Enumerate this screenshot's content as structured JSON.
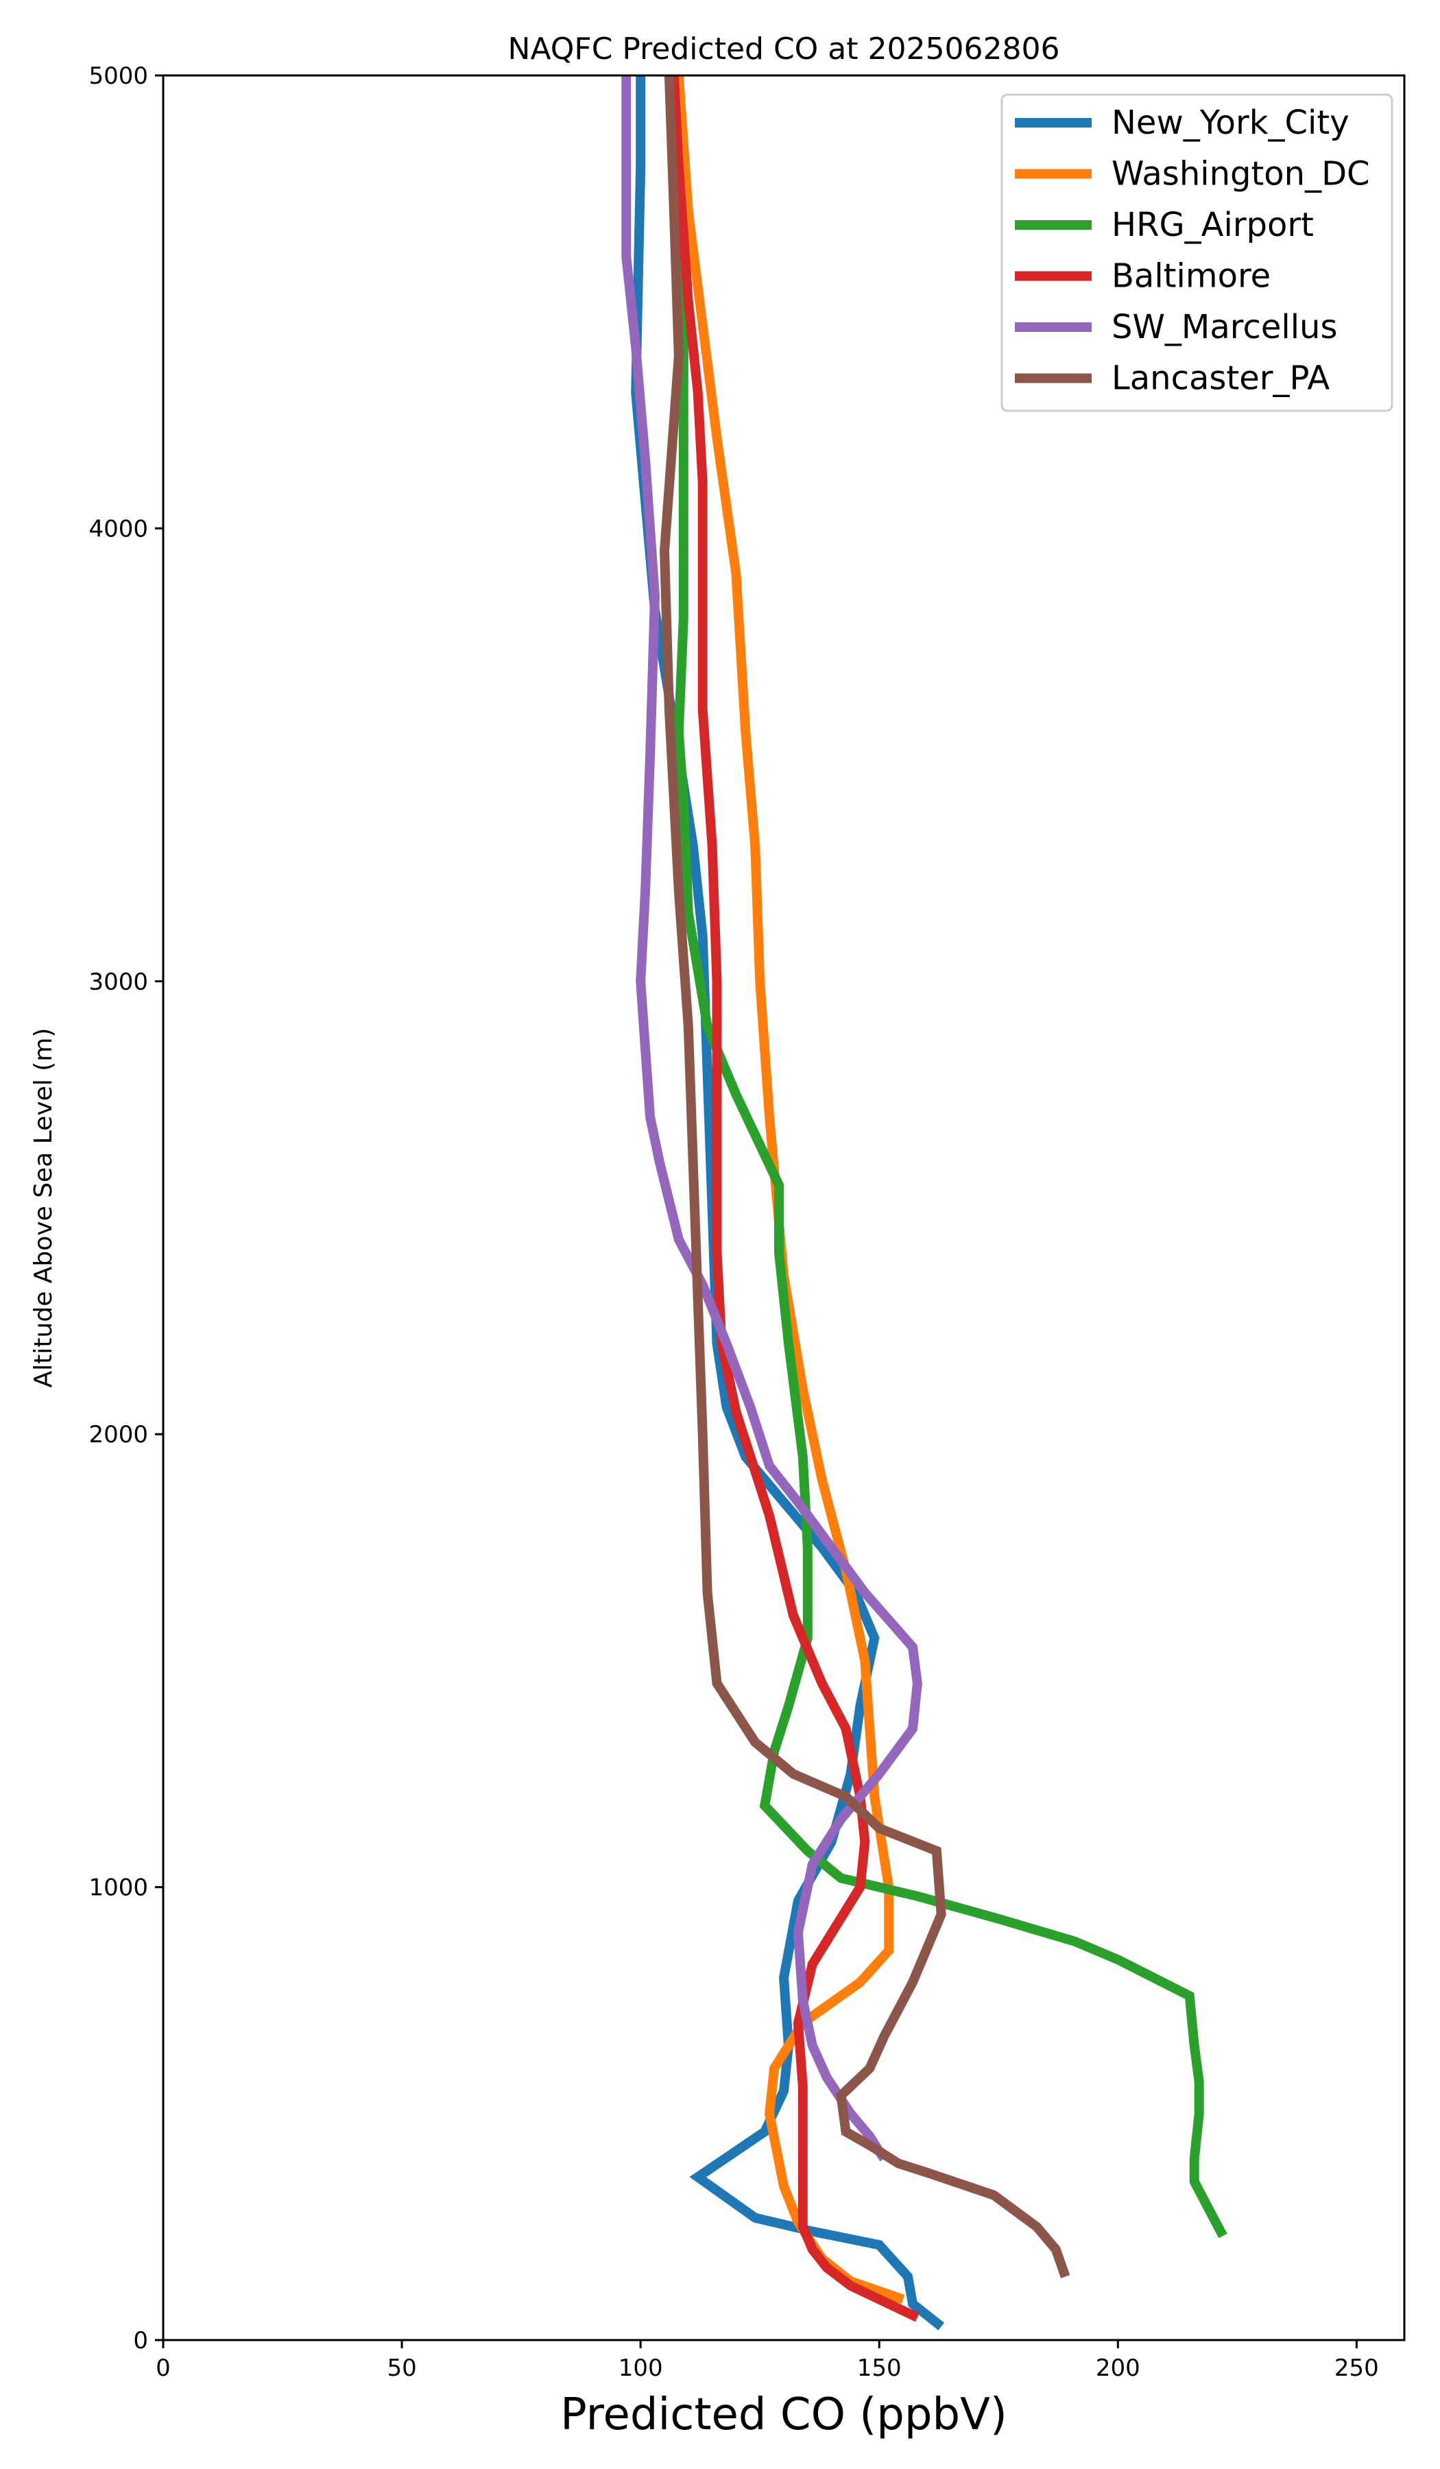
{
  "chart_data": {
    "type": "line",
    "title": "NAQFC Predicted CO at 2025062806",
    "xlabel": "Predicted CO (ppbV)",
    "ylabel": "Altitude Above Sea Level (m)",
    "xlim": [
      0,
      260
    ],
    "ylim": [
      0,
      5000
    ],
    "xticks": [
      0,
      50,
      100,
      150,
      200,
      250
    ],
    "yticks": [
      0,
      1000,
      2000,
      3000,
      4000,
      5000
    ],
    "grid": false,
    "legend_position": "top-right",
    "series": [
      {
        "name": "New_York_City",
        "color": "#1f77b4",
        "points": [
          [
            163,
            30
          ],
          [
            157,
            80
          ],
          [
            156,
            140
          ],
          [
            150,
            210
          ],
          [
            136,
            240
          ],
          [
            124,
            270
          ],
          [
            112,
            360
          ],
          [
            126,
            460
          ],
          [
            130,
            550
          ],
          [
            131,
            650
          ],
          [
            130,
            800
          ],
          [
            133,
            970
          ],
          [
            140,
            1100
          ],
          [
            144,
            1250
          ],
          [
            146,
            1400
          ],
          [
            149,
            1550
          ],
          [
            145,
            1650
          ],
          [
            138,
            1750
          ],
          [
            130,
            1850
          ],
          [
            122,
            1950
          ],
          [
            118,
            2060
          ],
          [
            116,
            2200
          ],
          [
            115,
            2500
          ],
          [
            114,
            2800
          ],
          [
            113,
            3100
          ],
          [
            111,
            3300
          ],
          [
            108,
            3500
          ],
          [
            103,
            3820
          ],
          [
            99,
            4300
          ],
          [
            100,
            4800
          ],
          [
            100,
            5000
          ]
        ]
      },
      {
        "name": "Washington_DC",
        "color": "#ff7f0e",
        "points": [
          [
            155,
            90
          ],
          [
            144,
            130
          ],
          [
            138,
            180
          ],
          [
            133,
            260
          ],
          [
            130,
            340
          ],
          [
            127,
            500
          ],
          [
            128,
            600
          ],
          [
            134,
            700
          ],
          [
            146,
            790
          ],
          [
            152,
            860
          ],
          [
            152,
            1000
          ],
          [
            149,
            1200
          ],
          [
            147,
            1500
          ],
          [
            143,
            1700
          ],
          [
            138,
            1900
          ],
          [
            134,
            2100
          ],
          [
            130,
            2350
          ],
          [
            127,
            2700
          ],
          [
            125,
            3000
          ],
          [
            124,
            3300
          ],
          [
            122,
            3550
          ],
          [
            120,
            3900
          ],
          [
            116,
            4200
          ],
          [
            110,
            4700
          ],
          [
            108,
            5000
          ]
        ]
      },
      {
        "name": "HRG_Airport",
        "color": "#2ca02c",
        "points": [
          [
            222,
            230
          ],
          [
            219,
            290
          ],
          [
            216,
            350
          ],
          [
            216,
            400
          ],
          [
            217,
            500
          ],
          [
            217,
            570
          ],
          [
            216,
            650
          ],
          [
            215,
            760
          ],
          [
            200,
            840
          ],
          [
            191,
            880
          ],
          [
            175,
            930
          ],
          [
            158,
            980
          ],
          [
            142,
            1020
          ],
          [
            135,
            1080
          ],
          [
            126,
            1180
          ],
          [
            128,
            1300
          ],
          [
            131,
            1400
          ],
          [
            135,
            1550
          ],
          [
            135,
            1750
          ],
          [
            134,
            1950
          ],
          [
            131,
            2200
          ],
          [
            129,
            2400
          ],
          [
            129,
            2550
          ],
          [
            120,
            2750
          ],
          [
            114,
            2900
          ],
          [
            110,
            3150
          ],
          [
            109,
            3400
          ],
          [
            108,
            3550
          ],
          [
            109,
            3800
          ],
          [
            109,
            4100
          ],
          [
            109,
            4400
          ],
          [
            107,
            4800
          ],
          [
            106,
            5000
          ]
        ]
      },
      {
        "name": "Baltimore",
        "color": "#d62728",
        "points": [
          [
            158,
            50
          ],
          [
            150,
            90
          ],
          [
            144,
            120
          ],
          [
            139,
            160
          ],
          [
            136,
            200
          ],
          [
            134,
            250
          ],
          [
            134,
            300
          ],
          [
            134,
            420
          ],
          [
            134,
            560
          ],
          [
            133,
            700
          ],
          [
            136,
            830
          ],
          [
            146,
            1000
          ],
          [
            147,
            1100
          ],
          [
            146,
            1200
          ],
          [
            143,
            1350
          ],
          [
            138,
            1450
          ],
          [
            132,
            1600
          ],
          [
            127,
            1820
          ],
          [
            120,
            2050
          ],
          [
            117,
            2200
          ],
          [
            116,
            2400
          ],
          [
            116,
            2700
          ],
          [
            116,
            3000
          ],
          [
            115,
            3300
          ],
          [
            113,
            3600
          ],
          [
            113,
            3850
          ],
          [
            113,
            4100
          ],
          [
            112,
            4300
          ],
          [
            110,
            4500
          ],
          [
            108,
            4800
          ],
          [
            107,
            5000
          ]
        ]
      },
      {
        "name": "SW_Marcellus",
        "color": "#9467bd",
        "points": [
          [
            151,
            400
          ],
          [
            148,
            450
          ],
          [
            144,
            500
          ],
          [
            139,
            580
          ],
          [
            136,
            650
          ],
          [
            134,
            750
          ],
          [
            133,
            900
          ],
          [
            136,
            1050
          ],
          [
            142,
            1150
          ],
          [
            150,
            1250
          ],
          [
            157,
            1350
          ],
          [
            158,
            1450
          ],
          [
            157,
            1530
          ],
          [
            147,
            1650
          ],
          [
            140,
            1750
          ],
          [
            133,
            1850
          ],
          [
            127,
            1930
          ],
          [
            123,
            2060
          ],
          [
            118,
            2200
          ],
          [
            113,
            2330
          ],
          [
            108,
            2430
          ],
          [
            104,
            2600
          ],
          [
            102,
            2700
          ],
          [
            101,
            2850
          ],
          [
            100,
            3000
          ],
          [
            101,
            3200
          ],
          [
            102,
            3500
          ],
          [
            103,
            3850
          ],
          [
            101,
            4150
          ],
          [
            99,
            4400
          ],
          [
            97,
            4600
          ],
          [
            97,
            4900
          ],
          [
            97,
            5000
          ]
        ]
      },
      {
        "name": "Lancaster_PA",
        "color": "#8c564b",
        "points": [
          [
            189,
            140
          ],
          [
            187,
            200
          ],
          [
            183,
            250
          ],
          [
            174,
            320
          ],
          [
            160,
            370
          ],
          [
            154,
            390
          ],
          [
            148,
            430
          ],
          [
            143,
            460
          ],
          [
            142,
            540
          ],
          [
            148,
            600
          ],
          [
            151,
            670
          ],
          [
            157,
            790
          ],
          [
            163,
            940
          ],
          [
            162,
            1080
          ],
          [
            150,
            1130
          ],
          [
            143,
            1200
          ],
          [
            132,
            1250
          ],
          [
            124,
            1320
          ],
          [
            116,
            1450
          ],
          [
            114,
            1650
          ],
          [
            113,
            2000
          ],
          [
            112,
            2300
          ],
          [
            111,
            2600
          ],
          [
            110,
            2900
          ],
          [
            108,
            3200
          ],
          [
            106,
            3600
          ],
          [
            105,
            3950
          ],
          [
            108,
            4380
          ],
          [
            107,
            4700
          ],
          [
            106,
            5000
          ]
        ]
      }
    ]
  }
}
